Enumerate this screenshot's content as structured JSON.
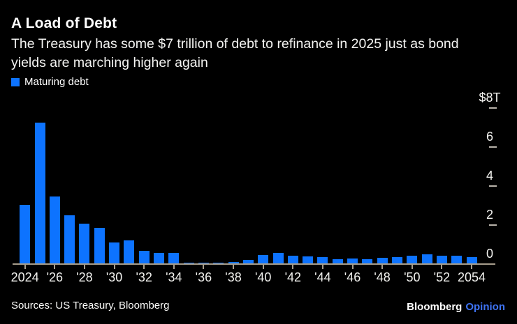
{
  "header": {
    "title": "A Load of Debt",
    "subtitle_lines": [
      "The Treasury has some $7 trillion of debt to refinance in 2025 just as bond",
      "yields are marching higher again"
    ]
  },
  "legend": {
    "label": "Maturing debt",
    "swatch_color": "#0d73ff"
  },
  "chart_data": {
    "type": "bar",
    "title": "A Load of Debt",
    "series_name": "Maturing debt",
    "unit": "USD trillions",
    "categories": [
      2024,
      2025,
      2026,
      2027,
      2028,
      2029,
      2030,
      2031,
      2032,
      2033,
      2034,
      2035,
      2036,
      2037,
      2038,
      2039,
      2040,
      2041,
      2042,
      2043,
      2044,
      2045,
      2046,
      2047,
      2048,
      2049,
      2050,
      2051,
      2052,
      2053,
      2054
    ],
    "values": [
      3.0,
      7.2,
      3.42,
      2.47,
      2.03,
      1.81,
      1.07,
      1.17,
      0.65,
      0.55,
      0.53,
      0.05,
      0.03,
      0.03,
      0.06,
      0.18,
      0.42,
      0.55,
      0.4,
      0.37,
      0.33,
      0.22,
      0.25,
      0.23,
      0.29,
      0.33,
      0.38,
      0.46,
      0.38,
      0.41,
      0.31
    ],
    "ylim": [
      0,
      8
    ],
    "y_ticks": [
      {
        "label": "$8T",
        "value": 8
      },
      {
        "label": "6",
        "value": 6
      },
      {
        "label": "4",
        "value": 4
      },
      {
        "label": "2",
        "value": 2
      },
      {
        "label": "0",
        "value": 0
      }
    ],
    "x_ticks": [
      {
        "label": "2024",
        "year": 2024
      },
      {
        "label": "'26",
        "year": 2026
      },
      {
        "label": "'28",
        "year": 2028
      },
      {
        "label": "'30",
        "year": 2030
      },
      {
        "label": "'32",
        "year": 2032
      },
      {
        "label": "'34",
        "year": 2034
      },
      {
        "label": "'36",
        "year": 2036
      },
      {
        "label": "'38",
        "year": 2038
      },
      {
        "label": "'40",
        "year": 2040
      },
      {
        "label": "'42",
        "year": 2042
      },
      {
        "label": "'44",
        "year": 2044
      },
      {
        "label": "'46",
        "year": 2046
      },
      {
        "label": "'48",
        "year": 2048
      },
      {
        "label": "'50",
        "year": 2050
      },
      {
        "label": "'52",
        "year": 2052
      },
      {
        "label": "2054",
        "year": 2054
      }
    ],
    "bar_color": "#0d73ff",
    "axis_color": "#a79d8c",
    "grid": false,
    "legend_position": "top-left"
  },
  "footer": {
    "sources": "Sources: US Treasury, Bloomberg",
    "brand": "Bloomberg",
    "brand_suffix": "Opinion"
  },
  "colors": {
    "background": "#000000",
    "text": "#ffffff",
    "accent_blue": "#0d73ff",
    "brand_suffix_blue": "#3e73f4",
    "axis": "#a79d8c"
  }
}
